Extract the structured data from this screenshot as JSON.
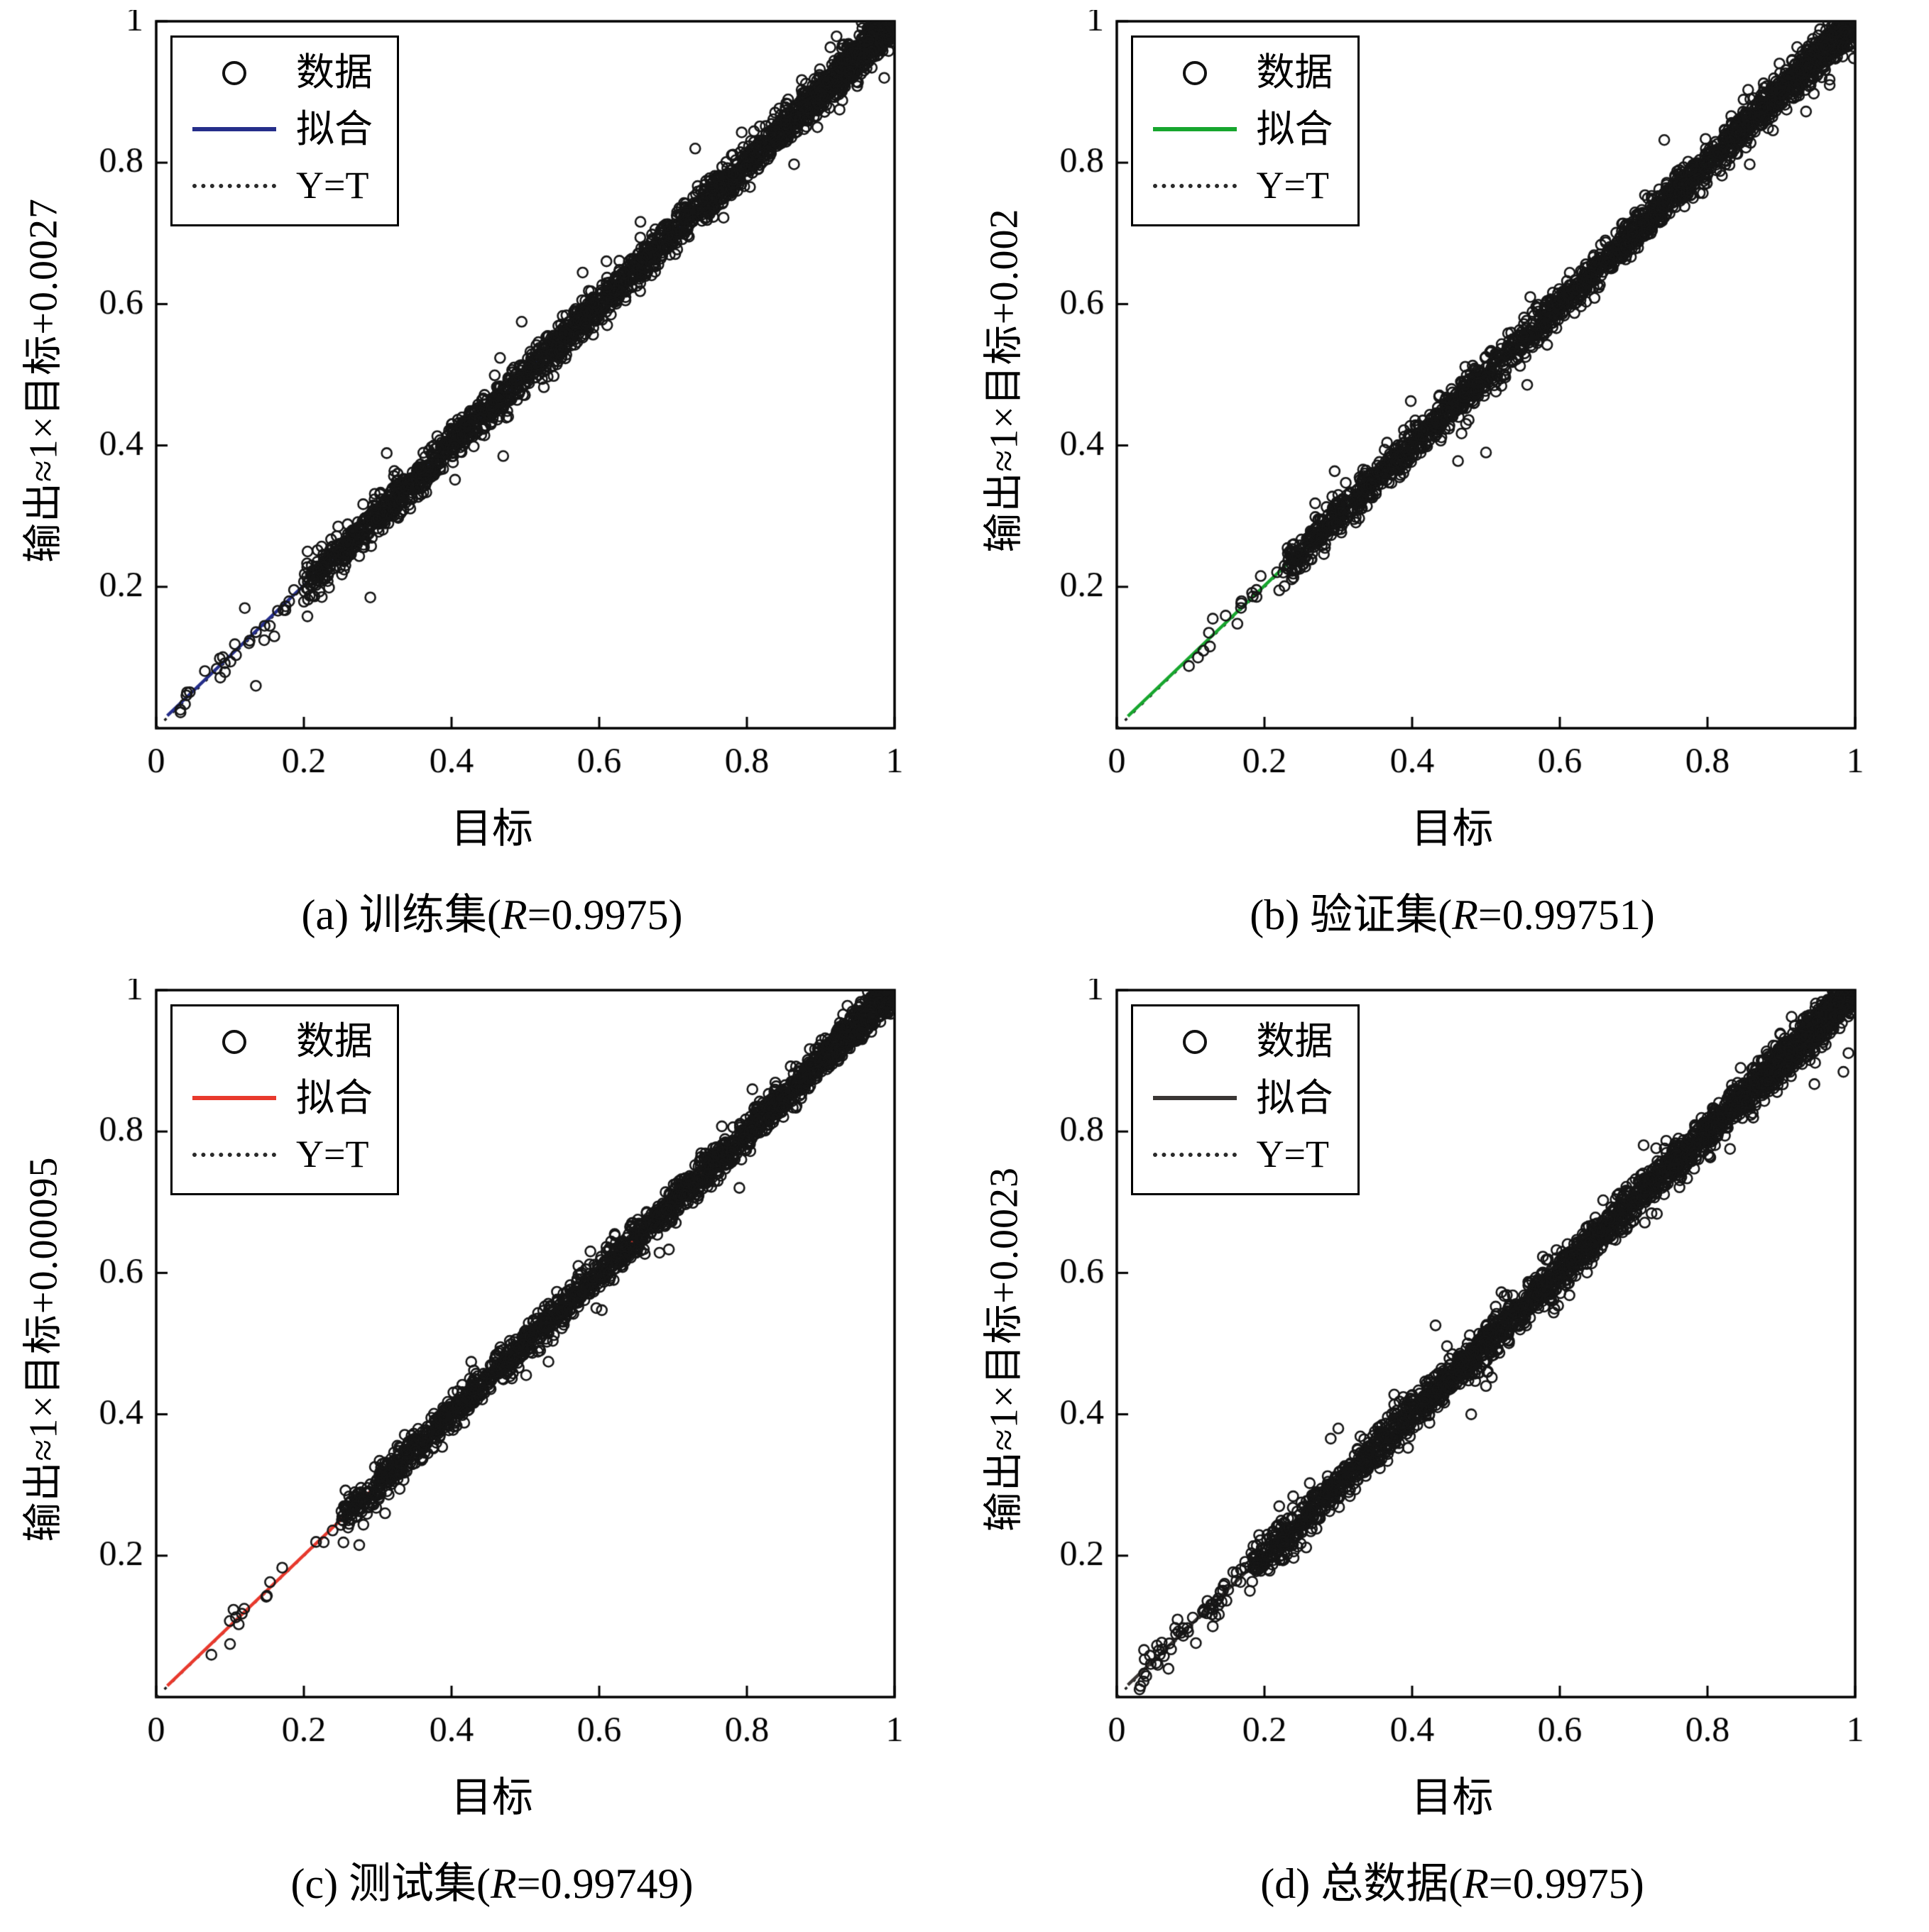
{
  "chart_data": [
    {
      "type": "scatter",
      "title": "(a) 训练集(R=0.9975)",
      "caption_pre": "(a) 训练集(",
      "caption_r": "R",
      "caption_post": "=0.9975)",
      "r_value": 0.9975,
      "xlabel": "目标",
      "ylabel": "输出≈1×目标+0.0027",
      "xlim": [
        0,
        1
      ],
      "ylim": [
        0,
        1
      ],
      "x_ticks": [
        0,
        0.2,
        0.4,
        0.6,
        0.8,
        1
      ],
      "y_ticks": [
        0.2,
        0.4,
        0.6,
        0.8,
        1
      ],
      "grid": false,
      "legend_position": "top-left",
      "data_label": "数据",
      "fit": {
        "label": "拟合",
        "slope": 1,
        "intercept": 0.0027,
        "color": "#252e8a"
      },
      "identity": {
        "label": "Y=T",
        "style": "dotted",
        "color": "#1c1c1c"
      },
      "marker": {
        "shape": "circle",
        "fill": "none",
        "color": "#161616"
      },
      "scatter_gen": {
        "seed": 11,
        "n": 2600,
        "band_start": 0.2,
        "noise_sd": 0.013,
        "x_low": 0.03,
        "low_n": 28
      },
      "outliers": [
        [
          0.135,
          0.06
        ],
        [
          0.205,
          0.25
        ],
        [
          0.29,
          0.185
        ],
        [
          0.47,
          0.385
        ],
        [
          0.495,
          0.575
        ],
        [
          0.73,
          0.82
        ],
        [
          0.16,
          0.13
        ],
        [
          0.12,
          0.17
        ]
      ]
    },
    {
      "type": "scatter",
      "title": "(b) 验证集(R=0.99751)",
      "caption_pre": "(b) 验证集(",
      "caption_r": "R",
      "caption_post": "=0.99751)",
      "r_value": 0.99751,
      "xlabel": "目标",
      "ylabel": "输出≈1×目标+0.002",
      "xlim": [
        0,
        1
      ],
      "ylim": [
        0,
        1
      ],
      "x_ticks": [
        0,
        0.2,
        0.4,
        0.6,
        0.8,
        1
      ],
      "y_ticks": [
        0.2,
        0.4,
        0.6,
        0.8,
        1
      ],
      "grid": false,
      "legend_position": "top-left",
      "data_label": "数据",
      "fit": {
        "label": "拟合",
        "slope": 1,
        "intercept": 0.002,
        "color": "#17a62e"
      },
      "identity": {
        "label": "Y=T",
        "style": "dotted",
        "color": "#1c1c1c"
      },
      "marker": {
        "shape": "circle",
        "fill": "none",
        "color": "#161616"
      },
      "scatter_gen": {
        "seed": 22,
        "n": 2300,
        "band_start": 0.23,
        "noise_sd": 0.013,
        "x_low": 0.08,
        "low_n": 18
      },
      "outliers": [
        [
          0.5,
          0.39
        ],
        [
          0.13,
          0.155
        ],
        [
          0.22,
          0.195
        ],
        [
          0.3,
          0.33
        ],
        [
          0.11,
          0.1
        ],
        [
          0.56,
          0.61
        ]
      ]
    },
    {
      "type": "scatter",
      "title": "(c) 测试集(R=0.99749)",
      "caption_pre": "(c) 测试集(",
      "caption_r": "R",
      "caption_post": "=0.99749)",
      "r_value": 0.99749,
      "xlabel": "目标",
      "ylabel": "输出≈1×目标+0.00095",
      "xlim": [
        0,
        1
      ],
      "ylim": [
        0,
        1
      ],
      "x_ticks": [
        0,
        0.2,
        0.4,
        0.6,
        0.8,
        1
      ],
      "y_ticks": [
        0.2,
        0.4,
        0.6,
        0.8,
        1
      ],
      "grid": false,
      "legend_position": "top-left",
      "data_label": "数据",
      "fit": {
        "label": "拟合",
        "slope": 1,
        "intercept": 0.00095,
        "color": "#e8392d"
      },
      "identity": {
        "label": "Y=T",
        "style": "dotted",
        "color": "#1c1c1c"
      },
      "marker": {
        "shape": "circle",
        "fill": "none",
        "color": "#161616"
      },
      "scatter_gen": {
        "seed": 33,
        "n": 2300,
        "band_start": 0.25,
        "noise_sd": 0.012,
        "x_low": 0.05,
        "low_n": 14
      },
      "outliers": [
        [
          0.1,
          0.075
        ],
        [
          0.275,
          0.215
        ],
        [
          0.52,
          0.49
        ],
        [
          0.31,
          0.26
        ],
        [
          0.97,
          0.955
        ]
      ]
    },
    {
      "type": "scatter",
      "title": "(d) 总数据(R=0.9975)",
      "caption_pre": "(d) 总数据(",
      "caption_r": "R",
      "caption_post": "=0.9975)",
      "r_value": 0.9975,
      "xlabel": "目标",
      "ylabel": "输出≈1×目标+0.0023",
      "xlim": [
        0,
        1
      ],
      "ylim": [
        0,
        1
      ],
      "x_ticks": [
        0,
        0.2,
        0.4,
        0.6,
        0.8,
        1
      ],
      "y_ticks": [
        0.2,
        0.4,
        0.6,
        0.8,
        1
      ],
      "grid": false,
      "legend_position": "top-left",
      "data_label": "数据",
      "fit": {
        "label": "拟合",
        "slope": 1,
        "intercept": 0.0023,
        "color": "#3a3634"
      },
      "identity": {
        "label": "Y=T",
        "style": "dotted",
        "color": "#1c1c1c"
      },
      "marker": {
        "shape": "circle",
        "fill": "none",
        "color": "#161616"
      },
      "scatter_gen": {
        "seed": 44,
        "n": 2800,
        "band_start": 0.18,
        "noise_sd": 0.014,
        "x_low": 0.03,
        "low_n": 60
      },
      "outliers": [
        [
          0.3,
          0.38
        ],
        [
          0.22,
          0.27
        ],
        [
          0.5,
          0.44
        ],
        [
          0.13,
          0.1
        ],
        [
          0.48,
          0.4
        ],
        [
          0.07,
          0.04
        ]
      ]
    }
  ]
}
